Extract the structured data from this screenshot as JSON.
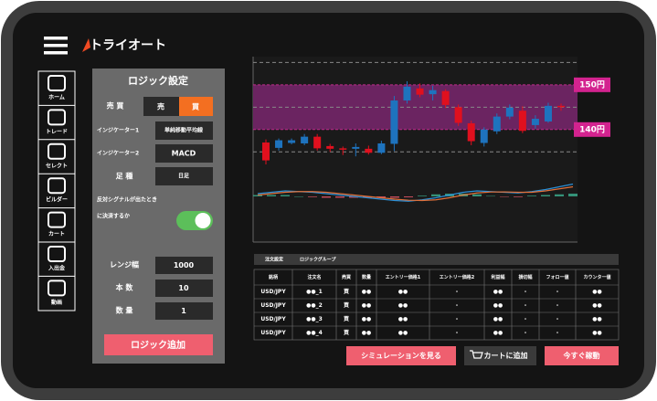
{
  "app": {
    "logo": "トライオート"
  },
  "nav": [
    "ホーム",
    "トレード",
    "セレクト",
    "ビルダー",
    "カート",
    "入出金",
    "動画"
  ],
  "logic_panel": {
    "title": "ロジック設定",
    "side_label": "売 買",
    "sell": "売",
    "buy": "買",
    "indicator1_label": "インジケーター1",
    "indicator1": "単純移動平均線",
    "indicator2_label": "インジケーター2",
    "indicator2": "MACD",
    "timeframe_label": "足 種",
    "timeframe": "日足",
    "opposite_signal_line1": "反対シグナルが出たとき",
    "opposite_signal_line2": "に決済するか",
    "range_label": "レンジ幅",
    "range": 1000,
    "count_label": "本 数",
    "count": 10,
    "quantity_label": "数 量",
    "quantity": 1,
    "add_button": "ロジック追加"
  },
  "chart": {
    "ylim": [
      132.2,
      156.3
    ],
    "levels": [
      {
        "value": 150,
        "label": "150円"
      },
      {
        "value": 140,
        "label": "140円"
      }
    ],
    "dashed_levels": [
      155,
      145,
      135
    ],
    "open": [
      137.1,
      135.9,
      137.0,
      136.9,
      138.4,
      136.3,
      135.8,
      135.7,
      135.7,
      134.8,
      136.8,
      146.5,
      149.2,
      147.9,
      148.6,
      145.0,
      141.4,
      137.0,
      139.6,
      142.9,
      144.2,
      141.0,
      141.8,
      145.3
    ],
    "high": [
      137.8,
      138.0,
      138.0,
      139.0,
      139.0,
      136.8,
      136.2,
      136.9,
      136.4,
      137.5,
      147.5,
      150.8,
      150.3,
      149.8,
      149.0,
      145.6,
      142.0,
      140.5,
      143.6,
      145.6,
      145.2,
      143.2,
      146.0,
      145.8
    ],
    "low": [
      132.2,
      135.3,
      136.7,
      136.5,
      135.3,
      135.0,
      134.3,
      134.0,
      134.4,
      134.5,
      135.2,
      145.8,
      147.2,
      146.5,
      144.8,
      140.8,
      136.5,
      136.2,
      139.0,
      142.3,
      139.2,
      140.2,
      141.5,
      144.2
    ],
    "close": [
      133.1,
      137.6,
      137.6,
      138.4,
      135.8,
      135.7,
      135.6,
      136.1,
      134.8,
      136.9,
      146.5,
      149.6,
      147.8,
      148.8,
      145.5,
      141.5,
      137.4,
      140.0,
      142.9,
      144.9,
      139.7,
      142.4,
      145.3,
      145.0
    ]
  },
  "indicator": {
    "ylim": [
      -1,
      1
    ],
    "macd": [
      0.2,
      0.3,
      0.4,
      0.35,
      0.3,
      0.2,
      0.1,
      0.0,
      -0.1,
      -0.2,
      -0.3,
      -0.35,
      -0.25,
      -0.1,
      0.1,
      0.3,
      0.4,
      0.35,
      0.3,
      0.25,
      0.35,
      0.5,
      0.7,
      0.9
    ],
    "signal": [
      0.1,
      0.2,
      0.3,
      0.35,
      0.35,
      0.3,
      0.2,
      0.1,
      0.0,
      -0.1,
      -0.2,
      -0.28,
      -0.3,
      -0.25,
      -0.1,
      0.1,
      0.25,
      0.32,
      0.33,
      0.3,
      0.3,
      0.4,
      0.55,
      0.7
    ],
    "histogram": [
      0.1,
      0.1,
      0.1,
      0.0,
      -0.05,
      -0.1,
      -0.1,
      -0.1,
      -0.1,
      -0.1,
      -0.1,
      -0.07,
      0.05,
      0.15,
      0.2,
      0.2,
      0.15,
      0.03,
      -0.03,
      -0.05,
      0.05,
      0.1,
      0.15,
      0.2
    ]
  },
  "table": {
    "tabs": [
      "注文設定",
      "ロジックグループ"
    ],
    "columns": [
      "銘柄",
      "注文名",
      "売買",
      "数量",
      "エントリー価格1",
      "エントリー価格2",
      "利益幅",
      "損切幅",
      "フォロー値",
      "カウンター値"
    ],
    "rows": [
      [
        "USD/JPY",
        "●●_1",
        "買",
        "●●",
        "●●",
        "-",
        "●●",
        "-",
        "-",
        "●●"
      ],
      [
        "USD/JPY",
        "●●_2",
        "買",
        "●●",
        "●●",
        "-",
        "●●",
        "-",
        "-",
        "●●"
      ],
      [
        "USD/JPY",
        "●●_3",
        "買",
        "●●",
        "●●",
        "-",
        "●●",
        "-",
        "-",
        "●●"
      ],
      [
        "USD/JPY",
        "●●_4",
        "買",
        "●●",
        "●●",
        "-",
        "●●",
        "-",
        "-",
        "●●"
      ]
    ]
  },
  "actions": [
    "シミュレーションを見る",
    "カートに追加",
    "今すぐ稼動"
  ]
}
